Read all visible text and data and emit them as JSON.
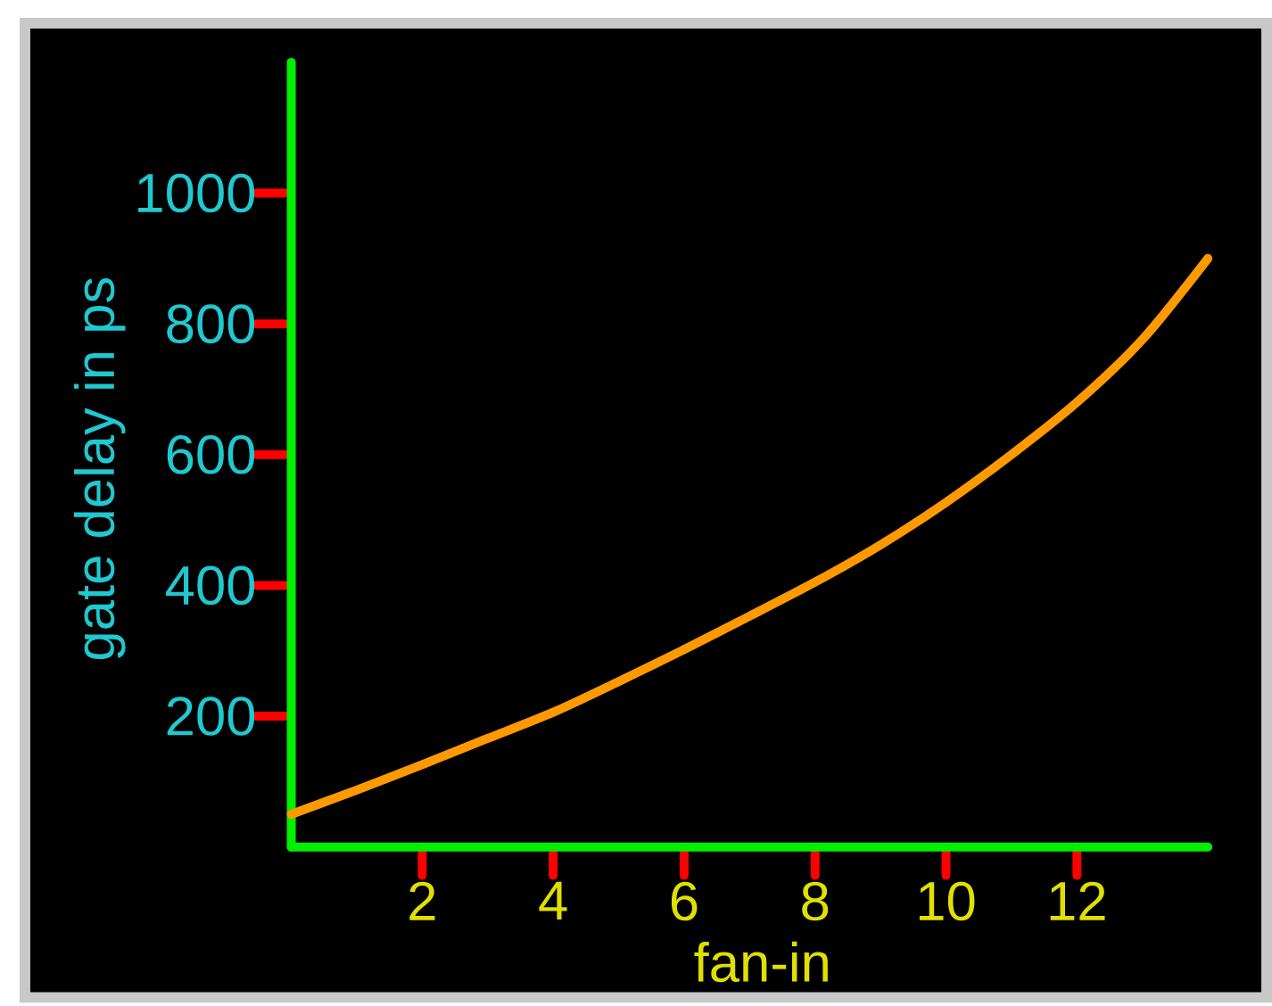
{
  "chart_data": {
    "type": "line",
    "xlabel": "fan-in",
    "ylabel": "gate delay in ps",
    "x": [
      0,
      1,
      2,
      3,
      4,
      5,
      6,
      7,
      8,
      9,
      10,
      11,
      12,
      13,
      14
    ],
    "series": [
      {
        "color": "#ff9900",
        "values": [
          50,
          87,
          126,
          166,
          206,
          253,
          302,
          353,
          405,
          462,
          527,
          600,
          680,
          776,
          900
        ]
      }
    ],
    "xlim": [
      0,
      14
    ],
    "ylim": [
      0,
      1200
    ],
    "xticks": [
      2,
      4,
      6,
      8,
      10,
      12
    ],
    "yticks": [
      200,
      400,
      600,
      800,
      1000
    ]
  }
}
